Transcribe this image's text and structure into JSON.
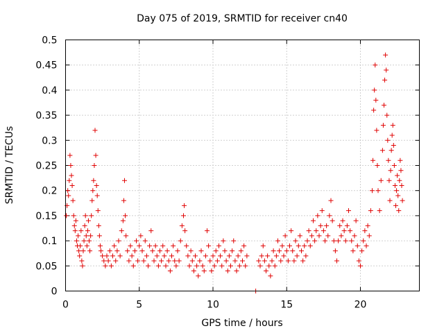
{
  "chart_data": {
    "type": "scatter",
    "title": "Day 075 of 2019, SRMTID for receiver cn40",
    "xlabel": "GPS time / hours",
    "ylabel": "SRMTID / TECUs",
    "xlim": [
      0,
      24
    ],
    "ylim": [
      0,
      0.5
    ],
    "xticks": [
      0,
      5,
      10,
      15,
      20
    ],
    "xtick_labels": [
      "0",
      "5",
      "10",
      "15",
      "20"
    ],
    "yticks": [
      0,
      0.05,
      0.1,
      0.15,
      0.2,
      0.25,
      0.3,
      0.35,
      0.4,
      0.45,
      0.5
    ],
    "ytick_labels": [
      "0",
      "0.05",
      "0.1",
      "0.15",
      "0.2",
      "0.25",
      "0.3",
      "0.35",
      "0.4",
      "0.45",
      "0.5"
    ],
    "grid": true,
    "marker": "plus",
    "color": "#e00000",
    "series": [
      {
        "name": "SRMTID",
        "points": [
          [
            0.05,
            0.15
          ],
          [
            0.1,
            0.17
          ],
          [
            0.15,
            0.2
          ],
          [
            0.2,
            0.19
          ],
          [
            0.25,
            0.22
          ],
          [
            0.3,
            0.27
          ],
          [
            0.35,
            0.25
          ],
          [
            0.4,
            0.23
          ],
          [
            0.45,
            0.21
          ],
          [
            0.5,
            0.18
          ],
          [
            0.55,
            0.15
          ],
          [
            0.6,
            0.13
          ],
          [
            0.65,
            0.12
          ],
          [
            0.7,
            0.14
          ],
          [
            0.75,
            0.1
          ],
          [
            0.8,
            0.09
          ],
          [
            0.85,
            0.11
          ],
          [
            0.9,
            0.08
          ],
          [
            0.95,
            0.07
          ],
          [
            1.0,
            0.09
          ],
          [
            1.05,
            0.12
          ],
          [
            1.1,
            0.06
          ],
          [
            1.15,
            0.05
          ],
          [
            1.2,
            0.08
          ],
          [
            1.25,
            0.1
          ],
          [
            1.3,
            0.13
          ],
          [
            1.35,
            0.15
          ],
          [
            1.4,
            0.11
          ],
          [
            1.45,
            0.09
          ],
          [
            1.5,
            0.12
          ],
          [
            1.55,
            0.14
          ],
          [
            1.6,
            0.1
          ],
          [
            1.65,
            0.08
          ],
          [
            1.7,
            0.11
          ],
          [
            1.75,
            0.15
          ],
          [
            1.8,
            0.18
          ],
          [
            1.85,
            0.2
          ],
          [
            1.9,
            0.22
          ],
          [
            1.95,
            0.25
          ],
          [
            2.0,
            0.32
          ],
          [
            2.05,
            0.27
          ],
          [
            2.1,
            0.21
          ],
          [
            2.15,
            0.19
          ],
          [
            2.2,
            0.16
          ],
          [
            2.25,
            0.13
          ],
          [
            2.3,
            0.11
          ],
          [
            2.35,
            0.09
          ],
          [
            2.4,
            0.08
          ],
          [
            2.5,
            0.07
          ],
          [
            2.6,
            0.06
          ],
          [
            2.7,
            0.05
          ],
          [
            2.8,
            0.07
          ],
          [
            2.9,
            0.06
          ],
          [
            3.0,
            0.08
          ],
          [
            3.1,
            0.05
          ],
          [
            3.2,
            0.07
          ],
          [
            3.3,
            0.09
          ],
          [
            3.4,
            0.06
          ],
          [
            3.5,
            0.08
          ],
          [
            3.6,
            0.1
          ],
          [
            3.7,
            0.07
          ],
          [
            3.8,
            0.12
          ],
          [
            3.9,
            0.14
          ],
          [
            3.95,
            0.18
          ],
          [
            4.0,
            0.22
          ],
          [
            4.05,
            0.15
          ],
          [
            4.1,
            0.11
          ],
          [
            4.2,
            0.08
          ],
          [
            4.3,
            0.06
          ],
          [
            4.4,
            0.09
          ],
          [
            4.5,
            0.07
          ],
          [
            4.6,
            0.05
          ],
          [
            4.7,
            0.08
          ],
          [
            4.8,
            0.1
          ],
          [
            4.9,
            0.06
          ],
          [
            5.0,
            0.09
          ],
          [
            5.1,
            0.11
          ],
          [
            5.2,
            0.08
          ],
          [
            5.3,
            0.06
          ],
          [
            5.4,
            0.1
          ],
          [
            5.5,
            0.07
          ],
          [
            5.6,
            0.05
          ],
          [
            5.7,
            0.09
          ],
          [
            5.8,
            0.12
          ],
          [
            5.9,
            0.08
          ],
          [
            6.0,
            0.06
          ],
          [
            6.1,
            0.09
          ],
          [
            6.2,
            0.07
          ],
          [
            6.3,
            0.05
          ],
          [
            6.4,
            0.08
          ],
          [
            6.5,
            0.06
          ],
          [
            6.6,
            0.09
          ],
          [
            6.7,
            0.07
          ],
          [
            6.8,
            0.05
          ],
          [
            6.9,
            0.08
          ],
          [
            7.0,
            0.06
          ],
          [
            7.1,
            0.04
          ],
          [
            7.2,
            0.07
          ],
          [
            7.3,
            0.09
          ],
          [
            7.4,
            0.06
          ],
          [
            7.5,
            0.05
          ],
          [
            7.6,
            0.08
          ],
          [
            7.7,
            0.06
          ],
          [
            7.8,
            0.1
          ],
          [
            7.9,
            0.13
          ],
          [
            8.0,
            0.15
          ],
          [
            8.05,
            0.17
          ],
          [
            8.1,
            0.12
          ],
          [
            8.2,
            0.09
          ],
          [
            8.3,
            0.07
          ],
          [
            8.4,
            0.05
          ],
          [
            8.5,
            0.08
          ],
          [
            8.6,
            0.06
          ],
          [
            8.7,
            0.04
          ],
          [
            8.8,
            0.07
          ],
          [
            8.9,
            0.05
          ],
          [
            9.0,
            0.03
          ],
          [
            9.1,
            0.06
          ],
          [
            9.2,
            0.08
          ],
          [
            9.3,
            0.05
          ],
          [
            9.4,
            0.04
          ],
          [
            9.5,
            0.07
          ],
          [
            9.6,
            0.12
          ],
          [
            9.7,
            0.09
          ],
          [
            9.8,
            0.06
          ],
          [
            9.9,
            0.04
          ],
          [
            10.0,
            0.07
          ],
          [
            10.1,
            0.05
          ],
          [
            10.2,
            0.08
          ],
          [
            10.3,
            0.06
          ],
          [
            10.4,
            0.09
          ],
          [
            10.5,
            0.07
          ],
          [
            10.6,
            0.05
          ],
          [
            10.7,
            0.1
          ],
          [
            10.8,
            0.08
          ],
          [
            10.9,
            0.06
          ],
          [
            11.0,
            0.04
          ],
          [
            11.1,
            0.07
          ],
          [
            11.2,
            0.05
          ],
          [
            11.3,
            0.08
          ],
          [
            11.4,
            0.1
          ],
          [
            11.5,
            0.06
          ],
          [
            11.6,
            0.04
          ],
          [
            11.7,
            0.07
          ],
          [
            11.8,
            0.05
          ],
          [
            11.9,
            0.08
          ],
          [
            12.0,
            0.06
          ],
          [
            12.1,
            0.09
          ],
          [
            12.2,
            0.05
          ],
          [
            12.3,
            0.07
          ],
          [
            12.9,
            0.0
          ],
          [
            13.1,
            0.06
          ],
          [
            13.2,
            0.05
          ],
          [
            13.3,
            0.07
          ],
          [
            13.4,
            0.09
          ],
          [
            13.5,
            0.06
          ],
          [
            13.6,
            0.04
          ],
          [
            13.7,
            0.07
          ],
          [
            13.8,
            0.05
          ],
          [
            13.9,
            0.03
          ],
          [
            14.0,
            0.06
          ],
          [
            14.1,
            0.08
          ],
          [
            14.2,
            0.05
          ],
          [
            14.3,
            0.07
          ],
          [
            14.4,
            0.1
          ],
          [
            14.5,
            0.08
          ],
          [
            14.6,
            0.06
          ],
          [
            14.7,
            0.09
          ],
          [
            14.8,
            0.07
          ],
          [
            14.9,
            0.11
          ],
          [
            15.0,
            0.08
          ],
          [
            15.1,
            0.06
          ],
          [
            15.2,
            0.09
          ],
          [
            15.3,
            0.12
          ],
          [
            15.4,
            0.08
          ],
          [
            15.5,
            0.06
          ],
          [
            15.6,
            0.1
          ],
          [
            15.7,
            0.07
          ],
          [
            15.8,
            0.09
          ],
          [
            15.9,
            0.11
          ],
          [
            16.0,
            0.08
          ],
          [
            16.1,
            0.06
          ],
          [
            16.2,
            0.09
          ],
          [
            16.3,
            0.07
          ],
          [
            16.4,
            0.1
          ],
          [
            16.5,
            0.12
          ],
          [
            16.6,
            0.09
          ],
          [
            16.7,
            0.11
          ],
          [
            16.8,
            0.14
          ],
          [
            16.9,
            0.1
          ],
          [
            17.0,
            0.12
          ],
          [
            17.1,
            0.15
          ],
          [
            17.2,
            0.11
          ],
          [
            17.3,
            0.13
          ],
          [
            17.4,
            0.16
          ],
          [
            17.5,
            0.12
          ],
          [
            17.6,
            0.1
          ],
          [
            17.7,
            0.13
          ],
          [
            17.8,
            0.11
          ],
          [
            17.9,
            0.15
          ],
          [
            18.0,
            0.18
          ],
          [
            18.1,
            0.14
          ],
          [
            18.2,
            0.1
          ],
          [
            18.3,
            0.08
          ],
          [
            18.4,
            0.06
          ],
          [
            18.5,
            0.1
          ],
          [
            18.6,
            0.13
          ],
          [
            18.7,
            0.11
          ],
          [
            18.8,
            0.14
          ],
          [
            18.9,
            0.12
          ],
          [
            19.0,
            0.1
          ],
          [
            19.1,
            0.13
          ],
          [
            19.2,
            0.16
          ],
          [
            19.3,
            0.12
          ],
          [
            19.4,
            0.1
          ],
          [
            19.5,
            0.08
          ],
          [
            19.6,
            0.11
          ],
          [
            19.7,
            0.14
          ],
          [
            19.8,
            0.09
          ],
          [
            19.9,
            0.06
          ],
          [
            20.0,
            0.05
          ],
          [
            20.1,
            0.08
          ],
          [
            20.2,
            0.1
          ],
          [
            20.3,
            0.12
          ],
          [
            20.4,
            0.09
          ],
          [
            20.5,
            0.13
          ],
          [
            20.6,
            0.11
          ],
          [
            20.7,
            0.16
          ],
          [
            20.8,
            0.2
          ],
          [
            20.85,
            0.26
          ],
          [
            20.9,
            0.36
          ],
          [
            20.95,
            0.4
          ],
          [
            21.0,
            0.45
          ],
          [
            21.05,
            0.38
          ],
          [
            21.1,
            0.32
          ],
          [
            21.15,
            0.25
          ],
          [
            21.2,
            0.2
          ],
          [
            21.3,
            0.16
          ],
          [
            21.4,
            0.22
          ],
          [
            21.5,
            0.28
          ],
          [
            21.55,
            0.33
          ],
          [
            21.6,
            0.37
          ],
          [
            21.65,
            0.42
          ],
          [
            21.7,
            0.47
          ],
          [
            21.75,
            0.44
          ],
          [
            21.8,
            0.35
          ],
          [
            21.85,
            0.3
          ],
          [
            21.9,
            0.26
          ],
          [
            21.95,
            0.22
          ],
          [
            22.0,
            0.18
          ],
          [
            22.05,
            0.24
          ],
          [
            22.1,
            0.28
          ],
          [
            22.15,
            0.31
          ],
          [
            22.2,
            0.33
          ],
          [
            22.25,
            0.29
          ],
          [
            22.3,
            0.25
          ],
          [
            22.35,
            0.21
          ],
          [
            22.4,
            0.17
          ],
          [
            22.45,
            0.2
          ],
          [
            22.5,
            0.23
          ],
          [
            22.55,
            0.19
          ],
          [
            22.6,
            0.16
          ],
          [
            22.65,
            0.22
          ],
          [
            22.7,
            0.26
          ],
          [
            22.75,
            0.24
          ],
          [
            22.8,
            0.21
          ],
          [
            22.85,
            0.18
          ]
        ]
      }
    ]
  }
}
